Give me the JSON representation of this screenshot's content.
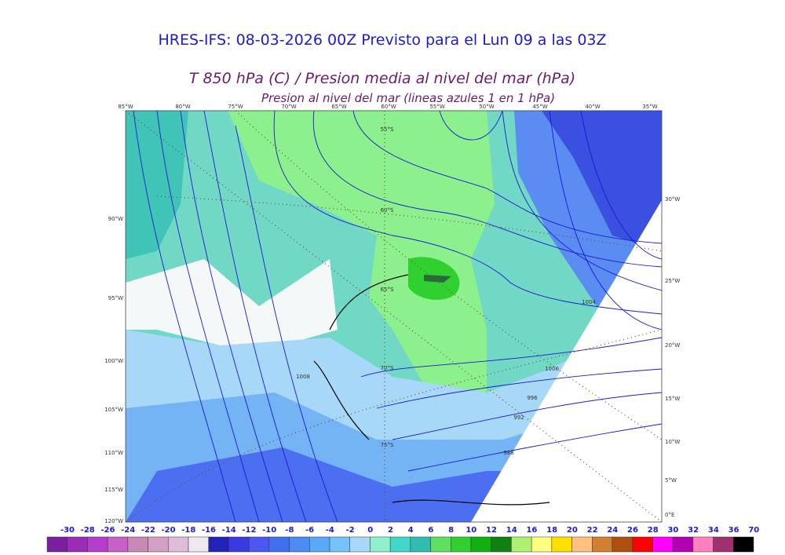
{
  "header": {
    "title": "HRES-IFS: 08-03-2026 00Z Previsto para el Lun 09 a las 03Z",
    "subtitle": "T 850 hPa (C) / Presion media al nivel del mar (hPa)",
    "subtitle2": "Presion al nivel del mar (lineas azules 1 en 1 hPa)"
  },
  "map": {
    "lon_top": [
      "85°W",
      "80°W",
      "75°W",
      "70°W",
      "65°W",
      "60°W",
      "55°W",
      "50°W",
      "45°W",
      "40°W",
      "35°W"
    ],
    "lon_left": [
      "90°W",
      "95°W",
      "100°W",
      "105°W",
      "110°W",
      "115°W",
      "120°W"
    ],
    "lon_right": [
      "30°W",
      "25°W",
      "20°W",
      "15°W",
      "10°W",
      "5°W",
      "0°E"
    ],
    "lat_labels": [
      "55°S",
      "60°S",
      "65°S",
      "70°S",
      "75°S"
    ],
    "isobar_labels": [
      "1004",
      "1000",
      "996",
      "992",
      "988",
      "1008"
    ]
  },
  "colorbar": {
    "labels": [
      "-30",
      "-28",
      "-26",
      "-24",
      "-22",
      "-20",
      "-18",
      "-16",
      "-14",
      "-12",
      "-10",
      "-8",
      "-6",
      "-4",
      "-2",
      "0",
      "2",
      "4",
      "6",
      "8",
      "10",
      "12",
      "14",
      "16",
      "18",
      "20",
      "22",
      "24",
      "26",
      "28",
      "30",
      "32",
      "34",
      "36",
      "70"
    ],
    "colors": [
      "#7a1fa0",
      "#9a2cb8",
      "#b63ccc",
      "#c860c8",
      "#c88ab4",
      "#d4a0c4",
      "#e0bcd8",
      "#f0e8f0",
      "#2222b8",
      "#3a3ae0",
      "#4c56f0",
      "#3e70f0",
      "#4a8cf2",
      "#5aa8f8",
      "#74c2f8",
      "#a8d8f8",
      "#90f0cc",
      "#40d8c8",
      "#30bcb0",
      "#60e060",
      "#30d030",
      "#10b010",
      "#108010",
      "#b0f070",
      "#ffff80",
      "#ffe000",
      "#ffc080",
      "#d08030",
      "#b05010",
      "#ff0000",
      "#ff00ff",
      "#b000b0",
      "#ff80c0",
      "#a03070",
      "#000000"
    ]
  }
}
